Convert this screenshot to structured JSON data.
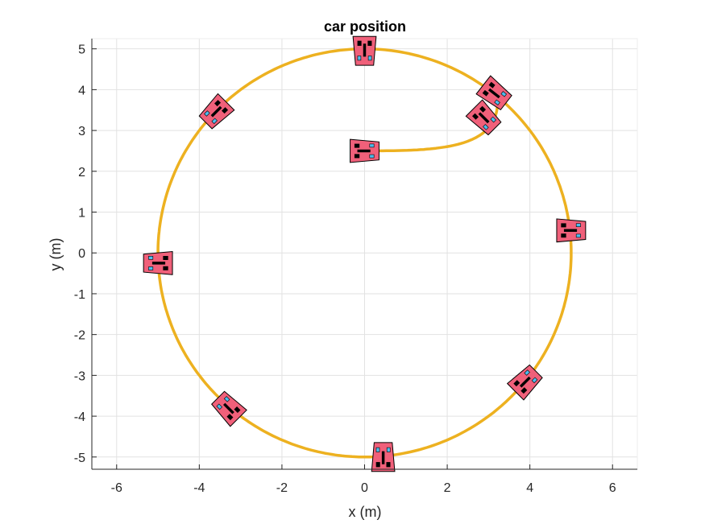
{
  "chart_data": {
    "type": "line",
    "title": "car position",
    "xlabel": "x (m)",
    "ylabel": "y (m)",
    "xlim": [
      -6.6,
      6.6
    ],
    "ylim": [
      -5.3,
      5.25
    ],
    "x_ticks": [
      -6,
      -4,
      -2,
      0,
      2,
      4,
      6
    ],
    "y_ticks": [
      -5,
      -4,
      -3,
      -2,
      -1,
      0,
      1,
      2,
      3,
      4,
      5
    ],
    "grid": true,
    "colors": {
      "trajectory": "#EDB120",
      "car_body": "#F0607A",
      "car_wheel": "#000000",
      "car_window": "#4DBEEE",
      "grid": "#E2E2E2",
      "axis": "#262626"
    },
    "series": [
      {
        "path": "lead-in arc then circle",
        "start": [
          0,
          2.5
        ],
        "lead_in_end": [
          2.9,
          3.75
        ],
        "circle_center": [
          0,
          0
        ],
        "circle_radius": 5,
        "circle_start_angle_deg": 50,
        "laps": 1.06
      }
    ],
    "cars": [
      {
        "x": 0.0,
        "y": 2.5,
        "heading_deg": 0
      },
      {
        "x": 2.9,
        "y": 3.3,
        "heading_deg": -45
      },
      {
        "x": 3.15,
        "y": 3.9,
        "heading_deg": -38
      },
      {
        "x": 0.0,
        "y": 4.95,
        "heading_deg": -90
      },
      {
        "x": -3.6,
        "y": 3.45,
        "heading_deg": -135
      },
      {
        "x": -5.0,
        "y": -0.25,
        "heading_deg": 180
      },
      {
        "x": -3.3,
        "y": -3.8,
        "heading_deg": 135
      },
      {
        "x": 0.45,
        "y": -5.0,
        "heading_deg": 90
      },
      {
        "x": 3.9,
        "y": -3.15,
        "heading_deg": 45
      },
      {
        "x": 5.0,
        "y": 0.55,
        "heading_deg": 0
      }
    ]
  }
}
